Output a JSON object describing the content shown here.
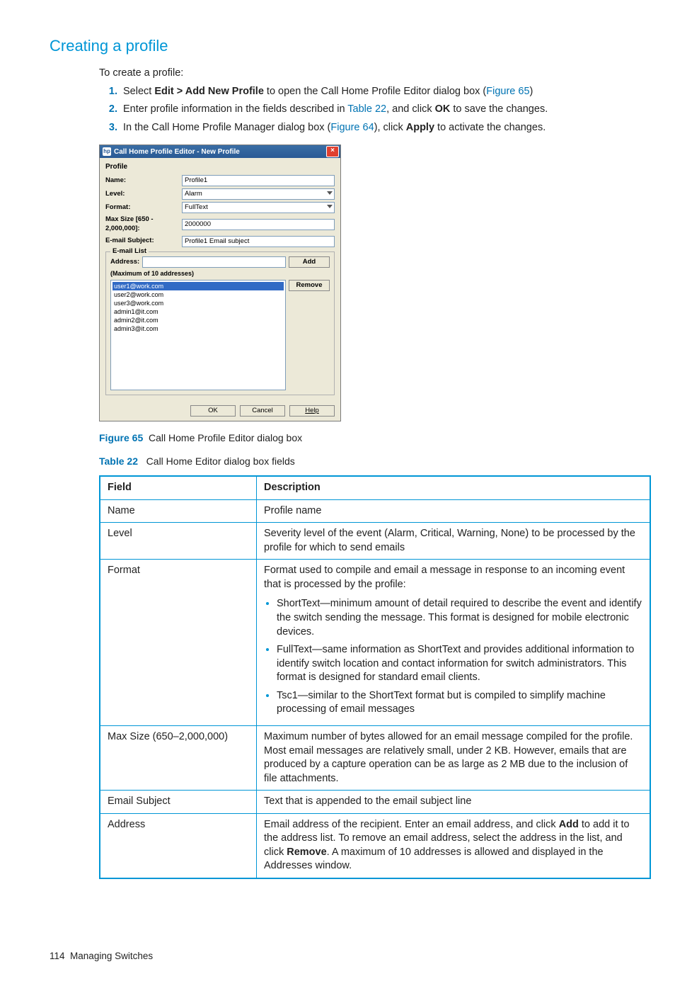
{
  "section": {
    "title": "Creating a profile",
    "intro": "To create a profile:"
  },
  "steps": {
    "s1a": "Select ",
    "s1b": "Edit > Add New Profile",
    "s1c": " to open the Call Home Profile Editor dialog box (",
    "s1link": "Figure 65",
    "s1d": ")",
    "s2a": "Enter profile information in the fields described in ",
    "s2link": "Table 22",
    "s2b": ", and click ",
    "s2bold": "OK",
    "s2c": " to save the changes.",
    "s3a": "In the Call Home Profile Manager dialog box (",
    "s3link": "Figure 64",
    "s3b": "), click ",
    "s3bold": "Apply",
    "s3c": " to activate the changes."
  },
  "dialog": {
    "ticon": "hp",
    "title": "Call Home Profile Editor - New Profile",
    "groupLabel": "Profile",
    "name": {
      "label": "Name:",
      "value": "Profile1"
    },
    "level": {
      "label": "Level:",
      "value": "Alarm"
    },
    "format": {
      "label": "Format:",
      "value": "FullText"
    },
    "maxSize": {
      "label": "Max Size [650 - 2,000,000]:",
      "value": "2000000"
    },
    "subject": {
      "label": "E-mail Subject:",
      "value": "Profile1 Email subject"
    },
    "emailList": {
      "legend": "E-mail List",
      "addressLabel": "Address:",
      "addBtn": "Add",
      "maxNote": "(Maximum of 10 addresses)",
      "removeBtn": "Remove",
      "items": [
        "user1@work.com",
        "user2@work.com",
        "user3@work.com",
        "admin1@it.com",
        "admin2@it.com",
        "admin3@it.com"
      ]
    },
    "buttons": {
      "ok": "OK",
      "cancel": "Cancel",
      "help": "Help"
    }
  },
  "figCaption": {
    "label": "Figure 65",
    "text": "Call Home Profile Editor dialog box"
  },
  "tblCaption": {
    "label": "Table 22",
    "text": "Call Home Editor dialog box fields"
  },
  "table": {
    "head": {
      "c1": "Field",
      "c2": "Description"
    },
    "rows": {
      "r1": {
        "f": "Name",
        "d": "Profile name"
      },
      "r2": {
        "f": "Level",
        "d": "Severity level of the event (Alarm, Critical, Warning, None) to be processed by the profile for which to send emails"
      },
      "r3": {
        "f": "Format",
        "d": "Format used to compile and email a message in response to an incoming event that is processed by the profile:",
        "b1": "ShortText—minimum amount of detail required to describe the event and identify the switch sending the message. This format is designed for mobile electronic devices.",
        "b2": "FullText—same information as ShortText and provides additional information to identify switch location and contact information for switch administrators. This format is designed for standard email clients.",
        "b3": "Tsc1—similar to the ShortText format but is compiled to simplify machine processing of email messages"
      },
      "r4": {
        "f": "Max Size (650–2,000,000)",
        "d": "Maximum number of bytes allowed for an email message compiled for the profile. Most email messages are relatively small, under 2 KB. However, emails that are produced by a capture operation can be as large as 2 MB due to the inclusion of file attachments."
      },
      "r5": {
        "f": "Email Subject",
        "d": "Text that is appended to the email subject line"
      },
      "r6": {
        "f": "Address",
        "d1": "Email address of the recipient. Enter an email address, and click ",
        "d2": "Add",
        "d3": " to add it to the address list. To remove an email address, select the address in the list, and click ",
        "d4": "Remove",
        "d5": ". A maximum of 10 addresses is allowed and displayed in the Addresses window."
      }
    }
  },
  "footer": {
    "page": "114",
    "chapter": "Managing Switches"
  }
}
